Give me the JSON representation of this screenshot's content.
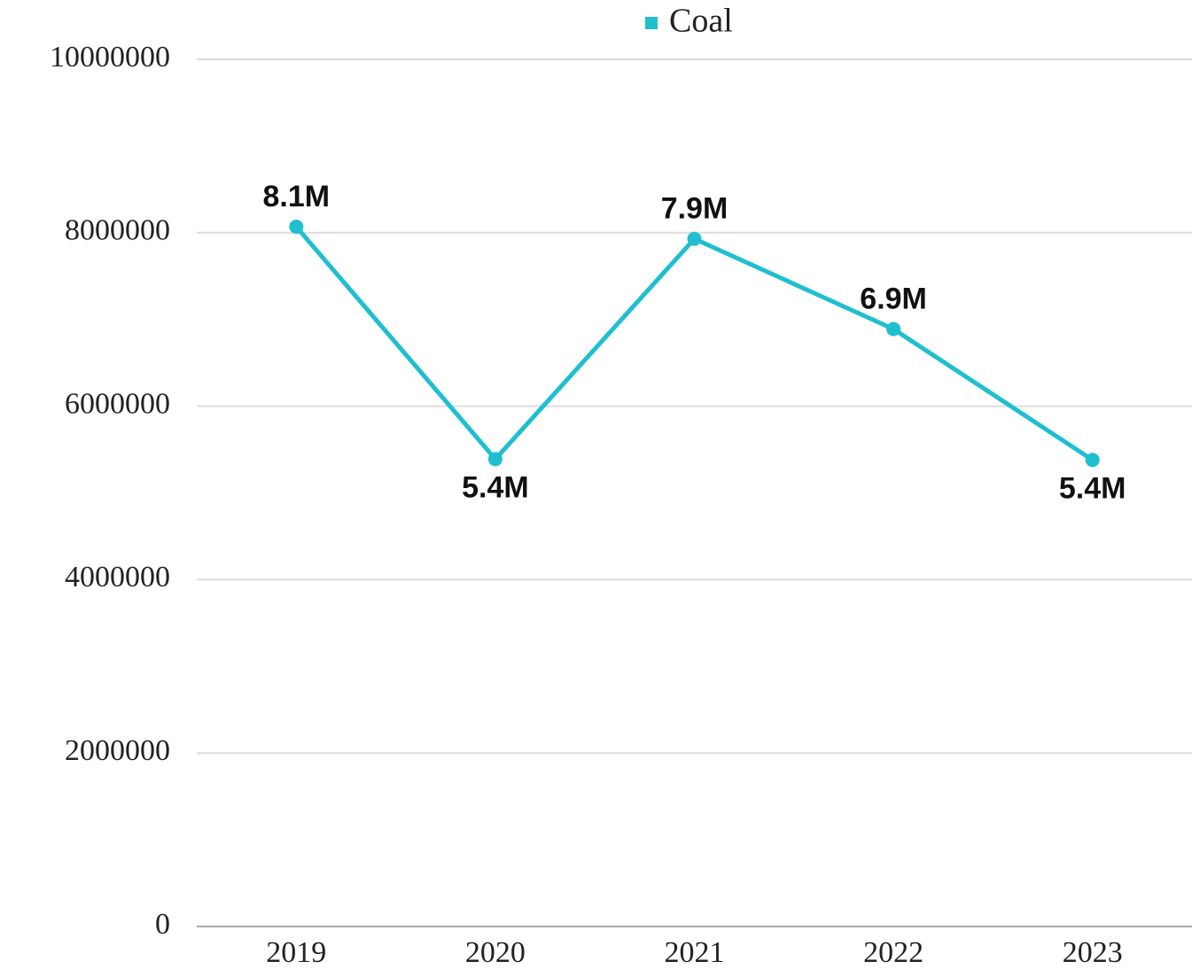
{
  "chart_data": {
    "type": "line",
    "categories": [
      "2019",
      "2020",
      "2021",
      "2022",
      "2023"
    ],
    "series": [
      {
        "name": "Coal",
        "color": "#1fbfd0",
        "values": [
          8070000,
          5390000,
          7930000,
          6890000,
          5380000
        ],
        "value_labels": [
          "8.1M",
          "5.4M",
          "7.9M",
          "6.9M",
          "5.4M"
        ]
      }
    ],
    "ylim": [
      0,
      10000000
    ],
    "yticks": [
      0,
      2000000,
      4000000,
      6000000,
      8000000,
      10000000
    ],
    "grid": true,
    "legend": "top"
  }
}
